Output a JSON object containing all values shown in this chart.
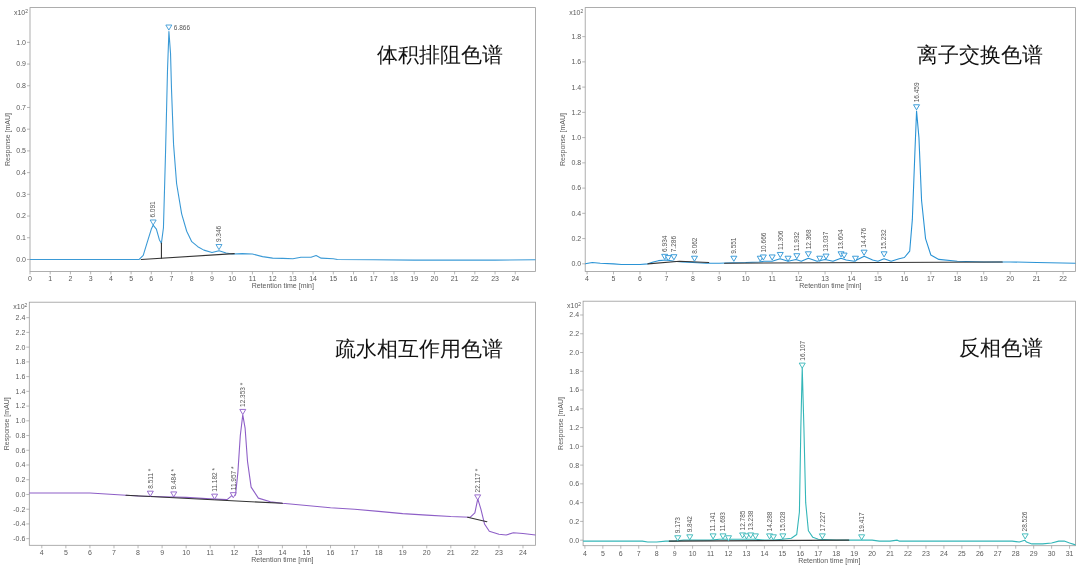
{
  "chart_data": [
    {
      "type": "line",
      "title": "体积排阻色谱",
      "xlabel": "Retention time [min]",
      "ylabel": "Response [mAU]",
      "xlim": [
        0,
        25
      ],
      "ylim": [
        -0.055,
        1.16
      ],
      "xticks": [
        0,
        1,
        2,
        3,
        4,
        5,
        6,
        7,
        8,
        9,
        10,
        11,
        12,
        13,
        14,
        15,
        16,
        17,
        18,
        19,
        20,
        21,
        22,
        23,
        24
      ],
      "yticks": [
        {
          "value": 0,
          "label": "0.0"
        },
        0.1,
        0.2,
        0.3,
        0.4,
        0.5,
        0.6,
        0.7,
        0.8,
        0.9,
        {
          "value": 1,
          "label": "1.0"
        }
      ],
      "annotations": [
        "x10$^{2}$",
        {
          "text": "6.091",
          "x": 6.091,
          "y": 0.17
        },
        {
          "text": "6.866",
          "x": 6.866,
          "y": 1.068
        },
        {
          "text": "9.346",
          "x": 9.346,
          "y": 0.057
        }
      ],
      "series": [
        {
          "color": "#3b9ad6",
          "x": [
            0,
            2,
            4,
            5,
            5.4,
            5.6,
            5.8,
            6.0,
            6.09,
            6.25,
            6.4,
            6.5,
            6.6,
            6.7,
            6.8,
            6.87,
            6.95,
            7.0,
            7.1,
            7.25,
            7.5,
            7.75,
            8.0,
            8.3,
            8.6,
            9.0,
            9.35,
            9.7,
            10.0,
            10.5,
            11.0,
            11.5,
            12.0,
            12.5,
            13.0,
            13.4,
            13.9,
            14.15,
            14.4,
            15.0,
            15.2,
            17,
            19,
            21,
            23,
            25
          ],
          "values": [
            0,
            0,
            0,
            0,
            0,
            0.019,
            0.08,
            0.14,
            0.158,
            0.14,
            0.09,
            0.075,
            0.146,
            0.48,
            0.87,
            1.05,
            0.95,
            0.78,
            0.53,
            0.35,
            0.21,
            0.13,
            0.082,
            0.059,
            0.043,
            0.032,
            0.04,
            0.03,
            0.025,
            0.027,
            0.025,
            0.013,
            0.006,
            0.005,
            0.003,
            0.01,
            0.01,
            0.018,
            0.006,
            0.003,
            0,
            -0.001,
            -0.003,
            -0.003,
            -0.003,
            -0.001
          ]
        },
        {
          "color": "#333333",
          "x": [
            5.5,
            10.1
          ],
          "values": [
            0,
            0.027
          ]
        },
        {
          "color": "#333333",
          "x": [
            6.5,
            6.5
          ],
          "values": [
            0.006,
            0.075
          ]
        },
        {
          "type": "scatter",
          "marker": "triangle",
          "color": "#3b9ad6",
          "x": [
            6.091,
            6.866,
            9.346
          ],
          "values": [
            0.17,
            1.068,
            0.057
          ]
        }
      ]
    },
    {
      "type": "line",
      "title": "离子交换色谱",
      "xlabel": "Retention time [min]",
      "ylabel": "Response [mAU]",
      "xlim": [
        3.93,
        22.47
      ],
      "ylim": [
        -0.06,
        2.03
      ],
      "xticks": [
        4,
        5,
        6,
        7,
        8,
        9,
        10,
        11,
        12,
        13,
        14,
        15,
        16,
        17,
        18,
        19,
        20,
        21,
        22
      ],
      "yticks": [
        {
          "value": 0,
          "label": "0.0"
        },
        0.2,
        0.4,
        0.6,
        0.8,
        {
          "value": 1,
          "label": "1.0"
        },
        1.2,
        1.4,
        1.6,
        1.8
      ],
      "annotations": [
        "x10$^{2}$",
        {
          "text": "6.934",
          "x": 6.934,
          "y": 0.055
        },
        {
          "text": "7.286",
          "x": 7.286,
          "y": 0.052
        },
        {
          "text": "8.062",
          "x": 8.062,
          "y": 0.04
        },
        {
          "text": "9.551",
          "x": 9.551,
          "y": 0.04
        },
        {
          "text": "10.666",
          "x": 10.666,
          "y": 0.05
        },
        {
          "text": "11.306",
          "x": 11.306,
          "y": 0.07
        },
        {
          "text": "11.932",
          "x": 11.932,
          "y": 0.06
        },
        {
          "text": "12.368",
          "x": 12.368,
          "y": 0.075
        },
        {
          "text": "13.037",
          "x": 13.037,
          "y": 0.057
        },
        {
          "text": "13.604",
          "x": 13.604,
          "y": 0.075
        },
        {
          "text": "14.476",
          "x": 14.476,
          "y": 0.088
        },
        {
          "text": "15.232",
          "x": 15.232,
          "y": 0.075
        },
        {
          "text": "16.459",
          "x": 16.459,
          "y": 1.24
        }
      ],
      "series": [
        {
          "color": "#2a93d5",
          "x": [
            3.93,
            4.2,
            4.5,
            5.0,
            5.3,
            6.0,
            6.3,
            6.5,
            6.7,
            7.0,
            7.3,
            7.6,
            8.0,
            8.5,
            9.0,
            9.5,
            10.0,
            10.5,
            10.7,
            11.0,
            11.3,
            11.6,
            11.9,
            12.1,
            12.37,
            12.7,
            13.0,
            13.3,
            13.6,
            13.8,
            14.1,
            14.48,
            14.8,
            15.0,
            15.23,
            15.5,
            15.8,
            16.0,
            16.2,
            16.3,
            16.4,
            16.46,
            16.55,
            16.65,
            16.8,
            17.0,
            17.3,
            18.0,
            19.0,
            20.0,
            21.0,
            22.47
          ],
          "values": [
            0.0,
            0.01,
            0.005,
            0.0,
            -0.005,
            -0.005,
            0.0,
            0.015,
            0.025,
            0.03,
            0.02,
            0.015,
            0.01,
            0.005,
            0.005,
            0.008,
            0.01,
            0.015,
            0.02,
            0.02,
            0.04,
            0.02,
            0.035,
            0.02,
            0.045,
            0.02,
            0.035,
            0.02,
            0.045,
            0.03,
            0.02,
            0.06,
            0.03,
            0.02,
            0.04,
            0.02,
            0.04,
            0.05,
            0.1,
            0.35,
            0.9,
            1.21,
            1.0,
            0.5,
            0.2,
            0.07,
            0.035,
            0.02,
            0.015,
            0.015,
            0.01,
            0.005
          ]
        },
        {
          "color": "#333333",
          "x": [
            6.3,
            7.5,
            8.6
          ],
          "values": [
            0.0,
            0.02,
            0.01
          ]
        },
        {
          "color": "#333333",
          "x": [
            9.2,
            19.7
          ],
          "values": [
            0.005,
            0.015
          ]
        },
        {
          "type": "scatter",
          "marker": "triangle",
          "color": "#2a93d5",
          "x": [
            6.934,
            7.07,
            7.286,
            8.062,
            9.551,
            10.55,
            10.666,
            11.0,
            11.306,
            11.6,
            11.932,
            12.368,
            12.8,
            13.037,
            13.604,
            13.72,
            14.15,
            14.476,
            15.232,
            16.459
          ],
          "values": [
            0.055,
            0.045,
            0.052,
            0.04,
            0.04,
            0.04,
            0.05,
            0.05,
            0.07,
            0.04,
            0.06,
            0.075,
            0.04,
            0.057,
            0.075,
            0.065,
            0.04,
            0.088,
            0.075,
            1.24
          ]
        }
      ]
    },
    {
      "type": "line",
      "title": "疏水相互作用色谱",
      "xlabel": "Retention time [min]",
      "ylabel": "Response [mAU]",
      "xlim": [
        3.48,
        24.52
      ],
      "ylim": [
        -0.69,
        2.61
      ],
      "xticks": [
        4,
        5,
        6,
        7,
        8,
        9,
        10,
        11,
        12,
        13,
        14,
        15,
        16,
        17,
        18,
        19,
        20,
        21,
        22,
        23,
        24
      ],
      "yticks": [
        -0.6,
        -0.4,
        -0.2,
        {
          "value": 0,
          "label": "0.0"
        },
        0.2,
        0.4,
        0.6,
        0.8,
        {
          "value": 1,
          "label": "1.0"
        },
        1.2,
        1.4,
        1.6,
        1.8,
        {
          "value": 2,
          "label": "2.0"
        },
        2.2,
        2.4
      ],
      "annotations": [
        "x10$^{2}$",
        {
          "text": "8.511 *",
          "x": 8.511,
          "y": 0.01
        },
        {
          "text": "9.484 *",
          "x": 9.484,
          "y": 0.0
        },
        {
          "text": "11.182 *",
          "x": 11.182,
          "y": -0.03
        },
        {
          "text": "11.957 *",
          "x": 11.957,
          "y": -0.01
        },
        {
          "text": "12.353 *",
          "x": 12.353,
          "y": 1.12
        },
        {
          "text": "22.117 *",
          "x": 22.117,
          "y": -0.04
        }
      ],
      "series": [
        {
          "color": "#8e5fc7",
          "x": [
            3.48,
            4.0,
            5.0,
            5.5,
            6.0,
            7.0,
            8.0,
            9.0,
            10.0,
            11.0,
            11.7,
            11.85,
            11.95,
            12.05,
            12.15,
            12.25,
            12.353,
            12.45,
            12.55,
            12.7,
            13.0,
            13.5,
            14.0,
            15.0,
            16.0,
            17.0,
            18.0,
            19.0,
            20.0,
            21.0,
            21.8,
            22.0,
            22.12,
            22.25,
            22.4,
            22.6,
            23.0,
            23.3,
            23.6,
            24.0,
            24.52
          ],
          "values": [
            0.02,
            0.02,
            0.02,
            0.02,
            0.02,
            0.0,
            -0.02,
            -0.03,
            -0.04,
            -0.06,
            -0.07,
            -0.03,
            0.0,
            -0.01,
            0.3,
            0.8,
            1.08,
            0.9,
            0.45,
            0.1,
            -0.05,
            -0.1,
            -0.12,
            -0.15,
            -0.18,
            -0.2,
            -0.23,
            -0.26,
            -0.28,
            -0.3,
            -0.31,
            -0.25,
            -0.06,
            -0.2,
            -0.4,
            -0.5,
            -0.54,
            -0.55,
            -0.52,
            -0.53,
            -0.55
          ]
        },
        {
          "color": "#333333",
          "x": [
            7.5,
            14.0
          ],
          "values": [
            -0.01,
            -0.12
          ]
        },
        {
          "color": "#333333",
          "x": [
            21.7,
            22.5
          ],
          "values": [
            -0.31,
            -0.37
          ]
        },
        {
          "type": "scatter",
          "marker": "triangle",
          "color": "#8e5fc7",
          "x": [
            8.511,
            9.484,
            11.182,
            11.957,
            12.353,
            22.117
          ],
          "values": [
            0.01,
            0.0,
            -0.03,
            -0.01,
            1.12,
            -0.04
          ]
        }
      ]
    },
    {
      "type": "line",
      "title": "反相色谱",
      "xlabel": "Retention time [min]",
      "ylabel": "Response [mAU]",
      "xlim": [
        3.9,
        31.33
      ],
      "ylim": [
        -0.059,
        2.547
      ],
      "xticks": [
        4,
        5,
        6,
        7,
        8,
        9,
        10,
        11,
        12,
        13,
        14,
        15,
        16,
        17,
        18,
        19,
        20,
        21,
        22,
        23,
        24,
        25,
        26,
        27,
        28,
        29,
        30,
        31
      ],
      "yticks": [
        {
          "value": 0,
          "label": "0.0"
        },
        0.2,
        0.4,
        0.6,
        0.8,
        {
          "value": 1,
          "label": "1.0"
        },
        1.2,
        1.4,
        1.6,
        1.8,
        {
          "value": 2,
          "label": "2.0"
        },
        2.2,
        2.4
      ],
      "annotations": [
        "x10$^{2}$",
        {
          "text": "9.173",
          "x": 9.173,
          "y": 0.02
        },
        {
          "text": "9.842",
          "x": 9.842,
          "y": 0.03
        },
        {
          "text": "11.141",
          "x": 11.141,
          "y": 0.04
        },
        {
          "text": "11.693",
          "x": 11.693,
          "y": 0.04
        },
        {
          "text": "12.785",
          "x": 12.785,
          "y": 0.05
        },
        {
          "text": "13.238",
          "x": 13.238,
          "y": 0.05
        },
        {
          "text": "14.288",
          "x": 14.288,
          "y": 0.04
        },
        {
          "text": "15.028",
          "x": 15.028,
          "y": 0.04
        },
        {
          "text": "16.107",
          "x": 16.107,
          "y": 1.86
        },
        {
          "text": "17.227",
          "x": 17.227,
          "y": 0.04
        },
        {
          "text": "19.417",
          "x": 19.417,
          "y": 0.03
        },
        {
          "text": "28.526",
          "x": 28.526,
          "y": 0.04
        }
      ],
      "series": [
        {
          "color": "#34b6b8",
          "x": [
            3.9,
            5.0,
            7.0,
            7.2,
            7.5,
            8.0,
            8.5,
            9.0,
            9.5,
            10.0,
            11.0,
            11.5,
            12.0,
            12.5,
            13.0,
            13.5,
            14.0,
            14.5,
            15.0,
            15.5,
            15.8,
            15.95,
            16.03,
            16.107,
            16.2,
            16.3,
            16.45,
            16.7,
            17.0,
            18.0,
            20.0,
            20.4,
            21.0,
            21.4,
            21.5,
            23.0,
            25.0,
            27.0,
            27.8,
            28.2,
            28.5,
            28.6,
            28.9,
            29.5,
            30.0,
            30.4,
            30.7,
            31.0,
            31.33
          ],
          "values": [
            -0.01,
            -0.01,
            -0.01,
            -0.01,
            -0.02,
            -0.02,
            -0.01,
            -0.01,
            0.0,
            0.0,
            0.0,
            0.01,
            0.01,
            0.01,
            0.01,
            0.01,
            0.0,
            0.0,
            0.01,
            0.02,
            0.06,
            0.3,
            1.2,
            1.84,
            1.2,
            0.4,
            0.1,
            0.03,
            0.01,
            0.0,
            0.0,
            -0.01,
            -0.01,
            0.0,
            -0.01,
            -0.01,
            -0.01,
            -0.01,
            -0.01,
            -0.02,
            0.0,
            -0.02,
            -0.04,
            -0.04,
            -0.03,
            -0.01,
            -0.01,
            -0.03,
            -0.05
          ]
        },
        {
          "color": "#333333",
          "x": [
            8.7,
            18.7
          ],
          "values": [
            -0.01,
            0.0
          ]
        },
        {
          "type": "scatter",
          "marker": "triangle",
          "color": "#34b6b8",
          "x": [
            9.173,
            9.842,
            11.141,
            11.693,
            12.0,
            12.785,
            13.0,
            13.238,
            13.5,
            14.288,
            14.5,
            15.028,
            16.107,
            17.227,
            19.417,
            28.526
          ],
          "values": [
            0.02,
            0.03,
            0.04,
            0.04,
            0.02,
            0.05,
            0.04,
            0.05,
            0.04,
            0.04,
            0.03,
            0.04,
            1.86,
            0.04,
            0.03,
            0.04
          ]
        }
      ]
    }
  ]
}
